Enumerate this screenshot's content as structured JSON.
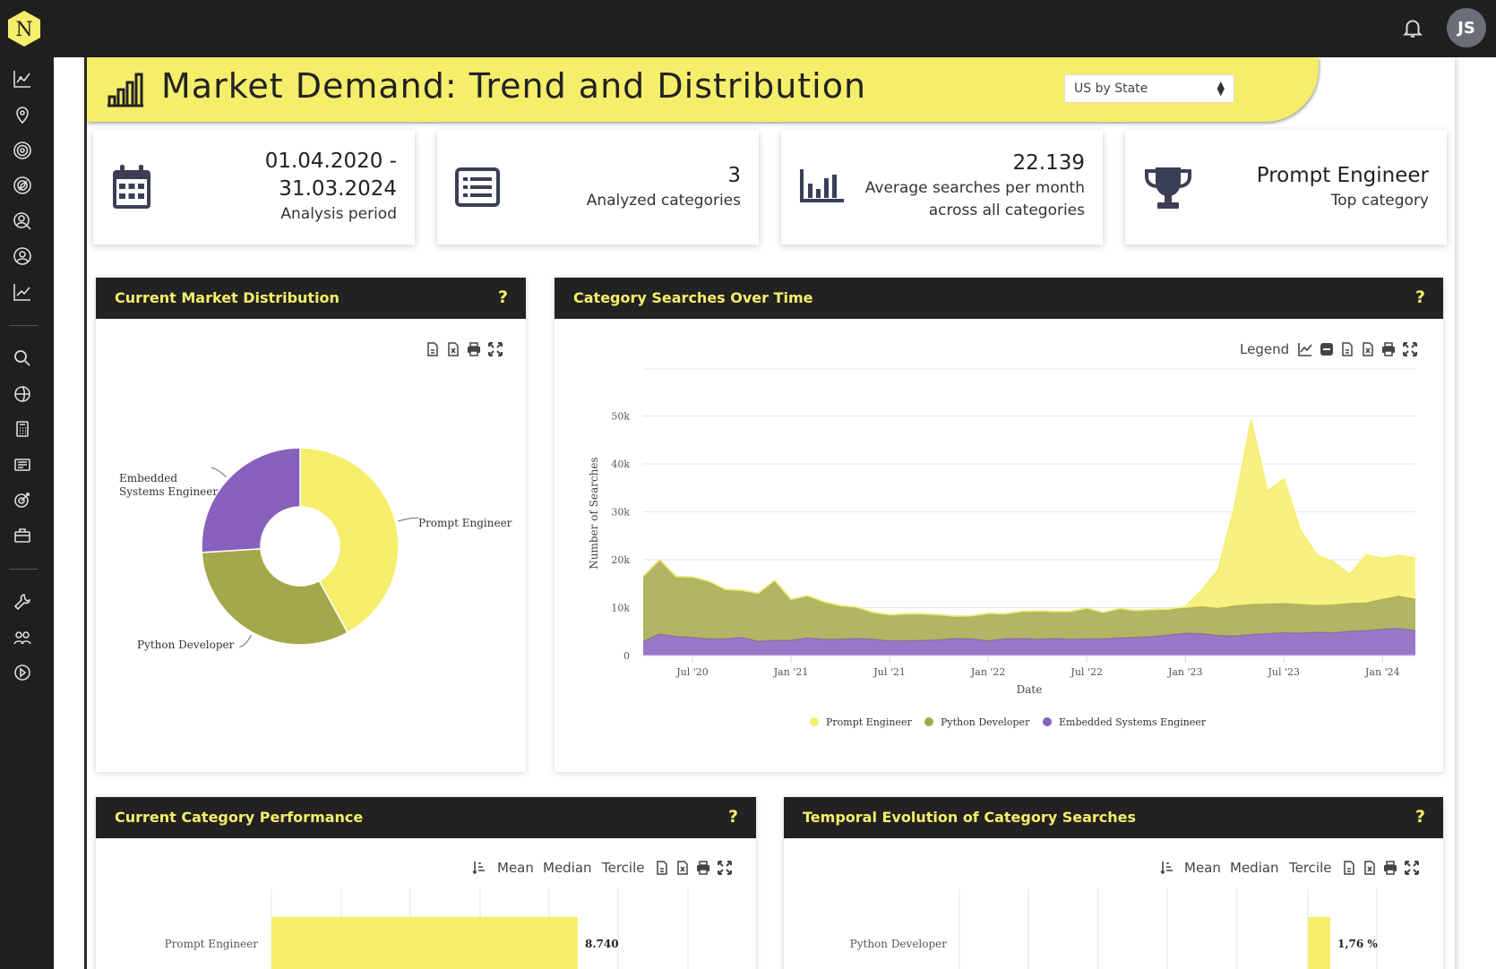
{
  "app": {
    "logo_letter": "N",
    "avatar_initials": "JS"
  },
  "header": {
    "title": "Market Demand: Trend and Distribution",
    "region_select": "US by State"
  },
  "stats": [
    {
      "value": "01.04.2020 -",
      "value2": "31.03.2024",
      "label": "Analysis period",
      "icon": "calendar-icon"
    },
    {
      "value": "3",
      "label": "Analyzed categories",
      "icon": "list-icon"
    },
    {
      "value": "22.139",
      "label": "Average searches per month",
      "label2": "across all categories",
      "icon": "bar-chart-icon"
    },
    {
      "value": "Prompt Engineer",
      "label": "Top category",
      "icon": "trophy-icon"
    }
  ],
  "panels": {
    "distribution": {
      "title": "Current Market Distribution",
      "help": "?"
    },
    "searches": {
      "title": "Category Searches Over Time",
      "help": "?",
      "legend_label": "Legend"
    },
    "performance": {
      "title": "Current Category Performance",
      "help": "?",
      "mean": "Mean",
      "median": "Median",
      "tercile": "Tercile"
    },
    "evolution": {
      "title": "Temporal Evolution of Category Searches",
      "help": "?",
      "mean": "Mean",
      "median": "Median",
      "tercile": "Tercile"
    }
  },
  "colors": {
    "accent": "#f5ee6a",
    "prompt": "#f5ee6a",
    "python": "#a3a84a",
    "embedded": "#8860bd",
    "dark": "#222222"
  },
  "chart_data": [
    {
      "type": "pie",
      "donut": true,
      "categories": [
        "Prompt Engineer",
        "Python Developer",
        "Embedded Systems Engineer"
      ],
      "labels": [
        "Prompt Engineer",
        "Python Developer",
        "Embedded",
        "Systems Engineer"
      ],
      "values": [
        42,
        32,
        26
      ]
    },
    {
      "type": "area",
      "stacked": true,
      "xlabel": "Date",
      "ylabel": "Number of Searches",
      "ylim": [
        0,
        50000
      ],
      "y_ticks": [
        "0",
        "10k",
        "20k",
        "30k",
        "40k",
        "50k"
      ],
      "x_ticks": [
        "Jul '20",
        "Jan '21",
        "Jul '21",
        "Jan '22",
        "Jul '22",
        "Jan '23",
        "Jul '23",
        "Jan '24"
      ],
      "x": [
        "Apr '20",
        "May '20",
        "Jun '20",
        "Jul '20",
        "Aug '20",
        "Sep '20",
        "Oct '20",
        "Nov '20",
        "Dec '20",
        "Jan '21",
        "Feb '21",
        "Mar '21",
        "Apr '21",
        "May '21",
        "Jun '21",
        "Jul '21",
        "Aug '21",
        "Sep '21",
        "Oct '21",
        "Nov '21",
        "Dec '21",
        "Jan '22",
        "Feb '22",
        "Mar '22",
        "Apr '22",
        "May '22",
        "Jun '22",
        "Jul '22",
        "Aug '22",
        "Sep '22",
        "Oct '22",
        "Nov '22",
        "Dec '22",
        "Jan '23",
        "Feb '23",
        "Mar '23",
        "Apr '23",
        "May '23",
        "Jun '23",
        "Jul '23",
        "Aug '23",
        "Sep '23",
        "Oct '23",
        "Nov '23",
        "Dec '23",
        "Jan '24",
        "Feb '24",
        "Mar '24"
      ],
      "legend_position": "bottom",
      "series": [
        {
          "name": "Embedded Systems Engineer",
          "color": "#8860bd",
          "values": [
            3000,
            4500,
            4000,
            3800,
            3500,
            3500,
            3800,
            3000,
            3200,
            3200,
            3700,
            3400,
            3400,
            3600,
            3400,
            3100,
            3100,
            3200,
            3300,
            3600,
            3500,
            3100,
            3500,
            3600,
            3400,
            3600,
            3400,
            3500,
            3500,
            3700,
            3800,
            4000,
            4300,
            4700,
            4600,
            4200,
            4100,
            4400,
            4600,
            4800,
            4700,
            4900,
            4800,
            5100,
            5200,
            5500,
            5700,
            5200
          ]
        },
        {
          "name": "Python Developer",
          "color": "#a3a84a",
          "values": [
            13500,
            15500,
            12500,
            12600,
            12000,
            10300,
            9800,
            10000,
            12500,
            8500,
            8800,
            7800,
            7000,
            6500,
            5600,
            5400,
            5600,
            5500,
            5200,
            4600,
            4800,
            5700,
            5200,
            5600,
            5900,
            5600,
            5800,
            6400,
            5500,
            6100,
            5600,
            5600,
            5400,
            5200,
            5600,
            5700,
            6300,
            6300,
            6200,
            6100,
            6000,
            5600,
            5800,
            5800,
            5800,
            6300,
            6700,
            6600
          ]
        },
        {
          "name": "Prompt Engineer",
          "color": "#f5ee6a",
          "values": [
            0,
            0,
            0,
            0,
            0,
            0,
            0,
            0,
            0,
            0,
            0,
            0,
            0,
            0,
            0,
            0,
            0,
            0,
            0,
            0,
            0,
            0,
            0,
            0,
            0,
            0,
            0,
            0,
            0,
            0,
            0,
            0,
            0,
            300,
            3500,
            8000,
            21000,
            38500,
            23500,
            26000,
            15500,
            10500,
            9000,
            6000,
            10000,
            8500,
            8500,
            8500
          ]
        }
      ]
    },
    {
      "type": "bar",
      "orientation": "horizontal",
      "categories": [
        "Prompt Engineer"
      ],
      "values": [
        8740
      ],
      "data_labels": [
        "8.740"
      ]
    },
    {
      "type": "bar",
      "orientation": "horizontal",
      "categories": [
        "Python Developer"
      ],
      "values": [
        1.76
      ],
      "data_labels": [
        "1,76 %"
      ]
    }
  ]
}
